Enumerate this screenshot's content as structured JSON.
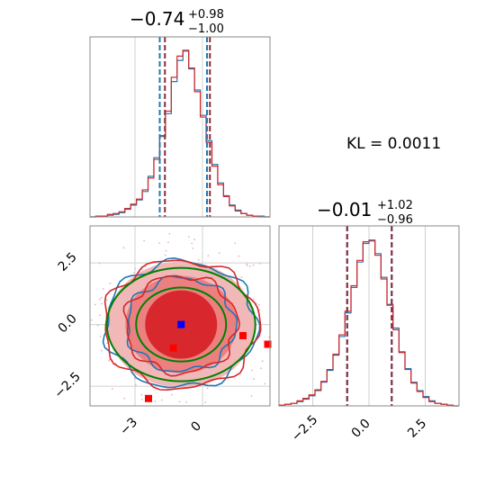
{
  "chart_data": [
    {
      "type": "histogram",
      "panel": "top-left (param 1 marginal)",
      "title": {
        "median": "−0.74",
        "plus": "+0.98",
        "minus": "−1.00"
      },
      "xlim": [
        -5,
        3
      ],
      "grid": true,
      "quantile_lines": [
        -1.74,
        -0.74,
        0.24
      ],
      "series": [
        {
          "color": "#1f77b4",
          "counts": [
            0,
            1,
            1,
            2,
            3,
            5,
            9,
            14,
            20,
            30,
            48,
            70,
            95,
            122,
            160,
            185,
            196,
            175,
            150,
            120,
            90,
            62,
            40,
            25,
            14,
            8,
            4,
            2,
            1,
            1,
            0
          ]
        },
        {
          "color": "#d62728",
          "counts": [
            0,
            1,
            1,
            3,
            4,
            6,
            10,
            15,
            21,
            32,
            46,
            68,
            96,
            125,
            165,
            190,
            197,
            176,
            148,
            118,
            88,
            60,
            38,
            24,
            13,
            7,
            4,
            2,
            1,
            0,
            0
          ]
        }
      ],
      "dashed_lines": {
        "blue": [
          -1.9,
          0.2
        ],
        "red": [
          -1.75,
          0.25
        ]
      }
    },
    {
      "type": "scatter+contour",
      "panel": "bottom-left (joint)",
      "xlim": [
        -5,
        3
      ],
      "ylim": [
        -3.3,
        4
      ],
      "x_ticks": [
        "−3",
        "0"
      ],
      "y_ticks": [
        "2.5",
        "0.0",
        "−2.5"
      ],
      "grid": true,
      "markers": [
        {
          "x": -0.95,
          "y": 0.0,
          "color": "#0000ff"
        },
        {
          "x": -1.3,
          "y": -0.95,
          "color": "#ff0000"
        },
        {
          "x": 1.8,
          "y": -0.45,
          "color": "#ff0000"
        },
        {
          "x": 2.9,
          "y": -0.8,
          "color": "#ff0000"
        },
        {
          "x": -2.4,
          "y": -3.0,
          "color": "#ff0000"
        }
      ],
      "ellipses": [
        {
          "cx": -0.95,
          "cy": 0.0,
          "rx": 3.3,
          "ry": 2.3,
          "color": "#008000"
        },
        {
          "cx": -0.95,
          "cy": 0.0,
          "rx": 2.0,
          "ry": 1.5,
          "color": "#008000"
        }
      ]
    },
    {
      "type": "histogram",
      "panel": "bottom-right (param 2 marginal)",
      "title": {
        "median": "−0.01",
        "plus": "+1.02",
        "minus": "−0.96"
      },
      "xlim": [
        -4,
        4
      ],
      "x_ticks": [
        "−2.5",
        "0.0",
        "2.5"
      ],
      "grid": true,
      "series": [
        {
          "color": "#1f77b4",
          "counts": [
            1,
            2,
            3,
            5,
            8,
            12,
            18,
            28,
            42,
            60,
            82,
            110,
            140,
            170,
            192,
            196,
            180,
            152,
            120,
            92,
            64,
            44,
            28,
            18,
            11,
            6,
            3,
            2,
            1,
            0
          ]
        },
        {
          "color": "#d62728",
          "counts": [
            1,
            2,
            3,
            6,
            9,
            13,
            19,
            29,
            43,
            61,
            84,
            112,
            142,
            172,
            194,
            195,
            178,
            150,
            119,
            90,
            63,
            43,
            27,
            17,
            10,
            5,
            3,
            2,
            1,
            0
          ]
        }
      ],
      "dashed_lines": {
        "blue": [
          -0.97,
          1.01
        ],
        "red": [
          -0.97,
          1.01
        ]
      }
    }
  ],
  "annotation": "KL = 0.0011"
}
